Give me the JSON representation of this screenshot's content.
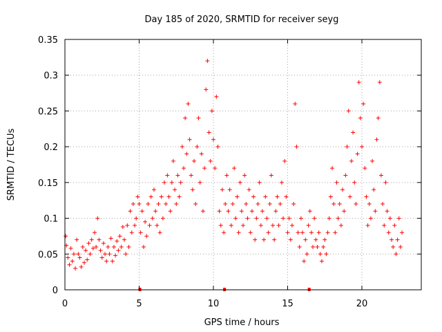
{
  "chart_data": {
    "type": "scatter",
    "title": "Day 185 of 2020, SRMTID for receiver seyg",
    "xlabel": "GPS time / hours",
    "ylabel": "SRMTID / TECUs",
    "xlim": [
      0,
      24
    ],
    "ylim": [
      0,
      0.35
    ],
    "x_ticks": [
      0,
      5,
      10,
      15,
      20
    ],
    "x_tick_labels": [
      "0",
      "5",
      "10",
      "15",
      "20"
    ],
    "y_ticks": [
      0,
      0.05,
      0.1,
      0.15,
      0.2,
      0.25,
      0.3,
      0.35
    ],
    "y_tick_labels": [
      "0",
      "0.05",
      "0.1",
      "0.15",
      "0.2",
      "0.25",
      "0.3",
      "0.35"
    ],
    "grid": true,
    "marker": "+",
    "color": "#ff0000",
    "series": [
      {
        "name": "SRMTID",
        "points": [
          [
            0.05,
            0.075
          ],
          [
            0.1,
            0.062
          ],
          [
            0.2,
            0.045
          ],
          [
            0.3,
            0.035
          ],
          [
            0.4,
            0.058
          ],
          [
            0.5,
            0.04
          ],
          [
            0.6,
            0.05
          ],
          [
            0.7,
            0.03
          ],
          [
            0.8,
            0.07
          ],
          [
            0.9,
            0.05
          ],
          [
            1.0,
            0.045
          ],
          [
            1.1,
            0.032
          ],
          [
            1.2,
            0.06
          ],
          [
            1.3,
            0.038
          ],
          [
            1.4,
            0.055
          ],
          [
            1.5,
            0.042
          ],
          [
            1.6,
            0.065
          ],
          [
            1.7,
            0.05
          ],
          [
            1.8,
            0.07
          ],
          [
            1.9,
            0.058
          ],
          [
            2.0,
            0.08
          ],
          [
            2.1,
            0.06
          ],
          [
            2.2,
            0.1
          ],
          [
            2.3,
            0.07
          ],
          [
            2.4,
            0.055
          ],
          [
            2.5,
            0.045
          ],
          [
            2.6,
            0.065
          ],
          [
            2.7,
            0.05
          ],
          [
            2.8,
            0.04
          ],
          [
            2.9,
            0.06
          ],
          [
            3.0,
            0.05
          ],
          [
            3.1,
            0.072
          ],
          [
            3.2,
            0.04
          ],
          [
            3.3,
            0.06
          ],
          [
            3.4,
            0.048
          ],
          [
            3.5,
            0.068
          ],
          [
            3.6,
            0.055
          ],
          [
            3.7,
            0.075
          ],
          [
            3.8,
            0.06
          ],
          [
            3.9,
            0.088
          ],
          [
            4.0,
            0.07
          ],
          [
            4.1,
            0.05
          ],
          [
            4.2,
            0.09
          ],
          [
            4.3,
            0.06
          ],
          [
            4.4,
            0.11
          ],
          [
            4.5,
            0.08
          ],
          [
            4.6,
            0.12
          ],
          [
            4.7,
            0.09
          ],
          [
            4.8,
            0.1
          ],
          [
            4.9,
            0.13
          ],
          [
            5.0,
            0.12
          ],
          [
            5.1,
            0.08
          ],
          [
            5.2,
            0.11
          ],
          [
            5.3,
            0.06
          ],
          [
            5.4,
            0.095
          ],
          [
            5.5,
            0.075
          ],
          [
            5.6,
            0.12
          ],
          [
            5.7,
            0.09
          ],
          [
            5.8,
            0.13
          ],
          [
            5.9,
            0.1
          ],
          [
            6.0,
            0.14
          ],
          [
            6.1,
            0.11
          ],
          [
            6.2,
            0.09
          ],
          [
            6.3,
            0.12
          ],
          [
            6.4,
            0.08
          ],
          [
            6.5,
            0.13
          ],
          [
            6.6,
            0.1
          ],
          [
            6.7,
            0.15
          ],
          [
            6.8,
            0.12
          ],
          [
            6.9,
            0.16
          ],
          [
            7.0,
            0.13
          ],
          [
            7.1,
            0.11
          ],
          [
            7.2,
            0.15
          ],
          [
            7.3,
            0.18
          ],
          [
            7.4,
            0.14
          ],
          [
            7.5,
            0.12
          ],
          [
            7.6,
            0.16
          ],
          [
            7.7,
            0.13
          ],
          [
            7.8,
            0.15
          ],
          [
            7.9,
            0.2
          ],
          [
            8.0,
            0.17
          ],
          [
            8.1,
            0.24
          ],
          [
            8.2,
            0.19
          ],
          [
            8.3,
            0.26
          ],
          [
            8.4,
            0.21
          ],
          [
            8.5,
            0.16
          ],
          [
            8.6,
            0.14
          ],
          [
            8.7,
            0.18
          ],
          [
            8.8,
            0.12
          ],
          [
            8.9,
            0.2
          ],
          [
            9.0,
            0.24
          ],
          [
            9.1,
            0.15
          ],
          [
            9.2,
            0.19
          ],
          [
            9.3,
            0.11
          ],
          [
            9.4,
            0.17
          ],
          [
            9.5,
            0.28
          ],
          [
            9.6,
            0.32
          ],
          [
            9.7,
            0.22
          ],
          [
            9.8,
            0.18
          ],
          [
            9.9,
            0.25
          ],
          [
            10.0,
            0.21
          ],
          [
            10.1,
            0.17
          ],
          [
            10.2,
            0.27
          ],
          [
            10.3,
            0.2
          ],
          [
            10.4,
            0.11
          ],
          [
            10.5,
            0.09
          ],
          [
            10.6,
            0.14
          ],
          [
            10.7,
            0.08
          ],
          [
            10.8,
            0.12
          ],
          [
            10.9,
            0.16
          ],
          [
            11.0,
            0.11
          ],
          [
            11.1,
            0.14
          ],
          [
            11.2,
            0.09
          ],
          [
            11.3,
            0.12
          ],
          [
            11.4,
            0.17
          ],
          [
            11.5,
            0.1
          ],
          [
            11.6,
            0.13
          ],
          [
            11.7,
            0.08
          ],
          [
            11.8,
            0.15
          ],
          [
            11.9,
            0.11
          ],
          [
            12.0,
            0.09
          ],
          [
            12.1,
            0.16
          ],
          [
            12.2,
            0.12
          ],
          [
            12.3,
            0.1
          ],
          [
            12.4,
            0.14
          ],
          [
            12.5,
            0.08
          ],
          [
            12.6,
            0.11
          ],
          [
            12.7,
            0.13
          ],
          [
            12.8,
            0.07
          ],
          [
            12.9,
            0.1
          ],
          [
            13.0,
            0.12
          ],
          [
            13.1,
            0.15
          ],
          [
            13.2,
            0.09
          ],
          [
            13.3,
            0.11
          ],
          [
            13.4,
            0.07
          ],
          [
            13.5,
            0.13
          ],
          [
            13.6,
            0.1
          ],
          [
            13.7,
            0.08
          ],
          [
            13.8,
            0.12
          ],
          [
            13.9,
            0.16
          ],
          [
            14.0,
            0.09
          ],
          [
            14.1,
            0.07
          ],
          [
            14.2,
            0.11
          ],
          [
            14.3,
            0.13
          ],
          [
            14.4,
            0.09
          ],
          [
            14.5,
            0.12
          ],
          [
            14.6,
            0.15
          ],
          [
            14.7,
            0.1
          ],
          [
            14.8,
            0.18
          ],
          [
            14.9,
            0.13
          ],
          [
            15.0,
            0.08
          ],
          [
            15.1,
            0.1
          ],
          [
            15.2,
            0.07
          ],
          [
            15.3,
            0.09
          ],
          [
            15.4,
            0.12
          ],
          [
            15.5,
            0.26
          ],
          [
            15.6,
            0.2
          ],
          [
            15.7,
            0.08
          ],
          [
            15.8,
            0.06
          ],
          [
            15.9,
            0.1
          ],
          [
            16.0,
            0.08
          ],
          [
            16.1,
            0.04
          ],
          [
            16.2,
            0.07
          ],
          [
            16.3,
            0.05
          ],
          [
            16.4,
            0.09
          ],
          [
            16.5,
            0.11
          ],
          [
            16.6,
            0.08
          ],
          [
            16.7,
            0.06
          ],
          [
            16.8,
            0.1
          ],
          [
            16.9,
            0.07
          ],
          [
            17.0,
            0.06
          ],
          [
            17.1,
            0.08
          ],
          [
            17.2,
            0.05
          ],
          [
            17.3,
            0.04
          ],
          [
            17.4,
            0.06
          ],
          [
            17.5,
            0.07
          ],
          [
            17.6,
            0.05
          ],
          [
            17.7,
            0.08
          ],
          [
            17.8,
            0.1
          ],
          [
            17.9,
            0.13
          ],
          [
            18.0,
            0.17
          ],
          [
            18.1,
            0.12
          ],
          [
            18.2,
            0.08
          ],
          [
            18.3,
            0.15
          ],
          [
            18.4,
            0.1
          ],
          [
            18.5,
            0.12
          ],
          [
            18.6,
            0.09
          ],
          [
            18.7,
            0.14
          ],
          [
            18.8,
            0.11
          ],
          [
            18.9,
            0.16
          ],
          [
            19.0,
            0.2
          ],
          [
            19.1,
            0.25
          ],
          [
            19.2,
            0.13
          ],
          [
            19.3,
            0.18
          ],
          [
            19.4,
            0.22
          ],
          [
            19.5,
            0.15
          ],
          [
            19.6,
            0.12
          ],
          [
            19.7,
            0.19
          ],
          [
            19.8,
            0.29
          ],
          [
            19.9,
            0.24
          ],
          [
            20.0,
            0.2
          ],
          [
            20.1,
            0.26
          ],
          [
            20.2,
            0.17
          ],
          [
            20.3,
            0.13
          ],
          [
            20.4,
            0.09
          ],
          [
            20.5,
            0.12
          ],
          [
            20.6,
            0.1
          ],
          [
            20.7,
            0.18
          ],
          [
            20.8,
            0.14
          ],
          [
            20.9,
            0.11
          ],
          [
            21.0,
            0.21
          ],
          [
            21.1,
            0.24
          ],
          [
            21.2,
            0.29
          ],
          [
            21.3,
            0.16
          ],
          [
            21.4,
            0.12
          ],
          [
            21.5,
            0.09
          ],
          [
            21.6,
            0.15
          ],
          [
            21.7,
            0.11
          ],
          [
            21.8,
            0.08
          ],
          [
            21.9,
            0.1
          ],
          [
            22.0,
            0.07
          ],
          [
            22.1,
            0.06
          ],
          [
            22.2,
            0.09
          ],
          [
            22.3,
            0.05
          ],
          [
            22.4,
            0.07
          ],
          [
            22.5,
            0.1
          ],
          [
            22.6,
            0.06
          ],
          [
            22.7,
            0.08
          ]
        ]
      }
    ],
    "zero_markers_x": [
      5.05,
      10.75,
      16.45
    ]
  }
}
